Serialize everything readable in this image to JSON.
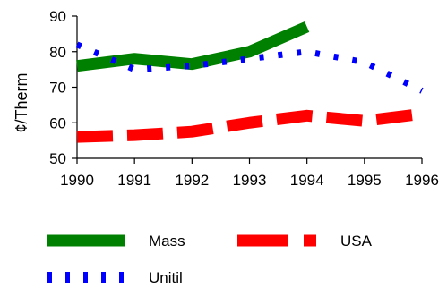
{
  "chart_data": {
    "type": "line",
    "title": "",
    "xlabel": "",
    "ylabel": "¢/Therm",
    "x": [
      1990,
      1991,
      1992,
      1993,
      1994,
      1995,
      1996
    ],
    "xlim": [
      1990,
      1996
    ],
    "ylim": [
      50,
      90
    ],
    "yticks": [
      50,
      60,
      70,
      80,
      90
    ],
    "grid": false,
    "legend_position": "bottom",
    "series": [
      {
        "name": "Mass",
        "x": [
          1990,
          1991,
          1992,
          1993,
          1994
        ],
        "values": [
          76,
          78,
          76.5,
          80,
          87
        ],
        "color": "#008000",
        "style": "solid"
      },
      {
        "name": "USA",
        "x": [
          1990,
          1991,
          1992,
          1993,
          1994,
          1995,
          1996
        ],
        "values": [
          56,
          56.5,
          57.5,
          60,
          62,
          60.5,
          62.5
        ],
        "color": "#ff0000",
        "style": "long-dash"
      },
      {
        "name": "Unitil",
        "x": [
          1990,
          1991,
          1992,
          1993,
          1994,
          1995,
          1996
        ],
        "values": [
          82,
          75,
          76,
          78,
          80,
          77,
          69
        ],
        "color": "#0000ff",
        "style": "dotted"
      }
    ]
  }
}
